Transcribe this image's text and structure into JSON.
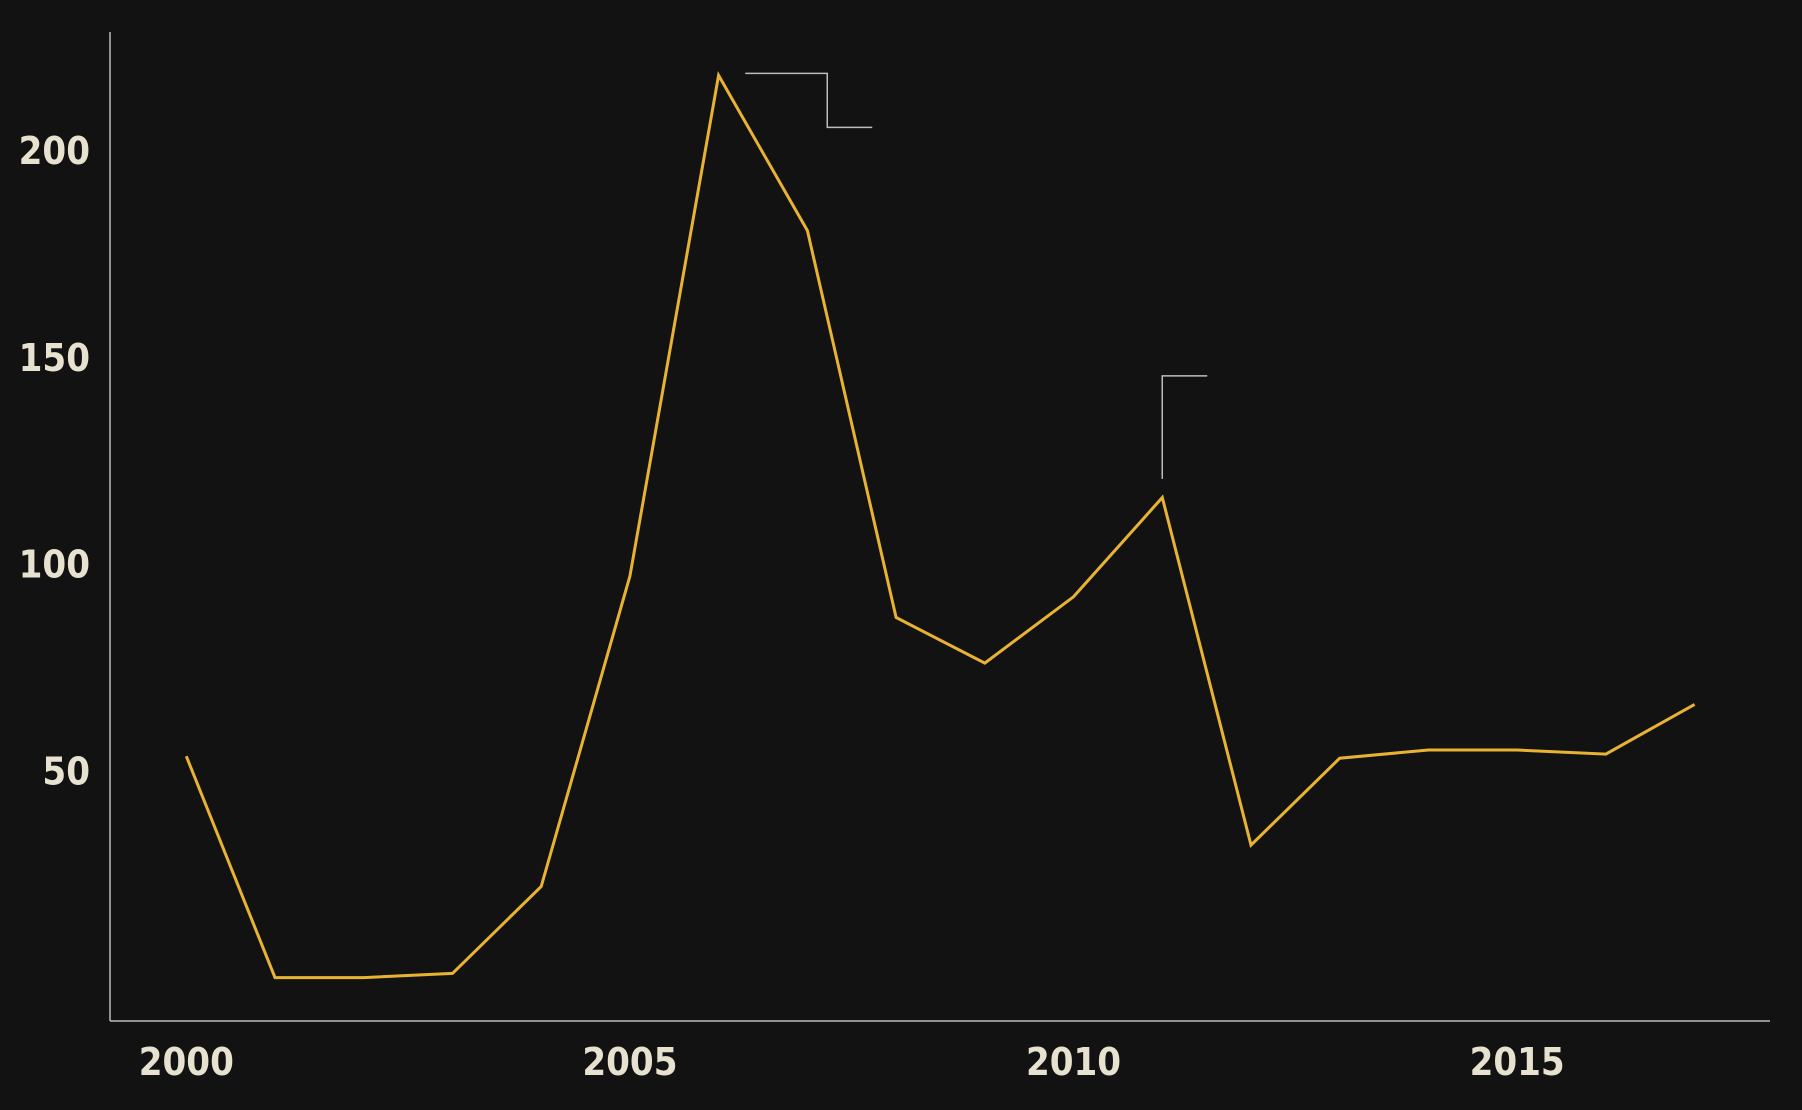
{
  "chart_data": {
    "type": "line",
    "title": "",
    "xlabel": "",
    "ylabel": "",
    "x": [
      2000,
      2001,
      2002,
      2003,
      2004,
      2005,
      2006,
      2007,
      2008,
      2009,
      2010,
      2011,
      2012,
      2013,
      2014,
      2015,
      2016,
      2017
    ],
    "series": [
      {
        "values": [
          53.5,
          0,
          0,
          1,
          22,
          97,
          218,
          180.5,
          87,
          76,
          92,
          116,
          32,
          53,
          55,
          55,
          54,
          66
        ],
        "color": "#e8b332"
      }
    ],
    "xticks": [
      2000,
      2005,
      2010,
      2015
    ],
    "yticks": [
      50,
      100,
      150,
      200
    ],
    "xlim": [
      1999.14,
      2017.85
    ],
    "ylim": [
      -10.5,
      228.5
    ],
    "grid": false,
    "legend": "none",
    "annotations": [
      {
        "x": 2006.3,
        "y": 218.5,
        "shape": "step-down-right",
        "text": ""
      },
      {
        "x": 2011,
        "y": 120.5,
        "shape": "corner-up-right",
        "text": ""
      }
    ],
    "colors": {
      "background": "#121212",
      "axis": "#bdbdbd",
      "tick_text": "#e6e2cf"
    }
  }
}
